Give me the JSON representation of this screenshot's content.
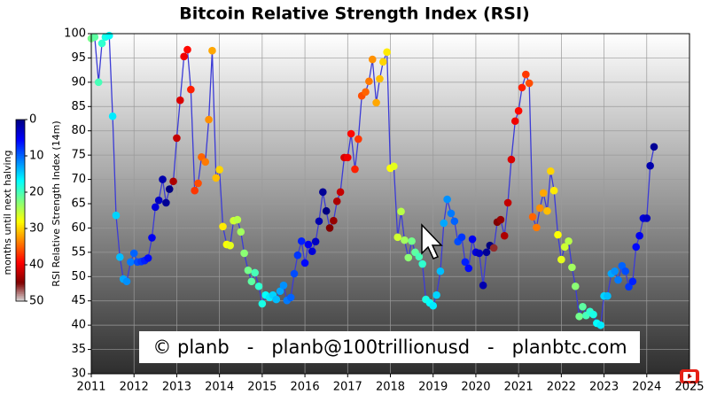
{
  "chart_data": {
    "type": "scatter",
    "title": "Bitcoin Relative Strength Index (RSI)",
    "ylabel": "RSI Relative Strength Index (14m)",
    "annotation": "© planb   -   planb@100trillionusd   -   planbtc.com",
    "xlim": [
      2011,
      2025
    ],
    "ylim": [
      30,
      100
    ],
    "xticks": [
      2011,
      2012,
      2013,
      2014,
      2015,
      2016,
      2017,
      2018,
      2019,
      2020,
      2021,
      2022,
      2023,
      2024,
      2025
    ],
    "yticks": [
      30,
      35,
      40,
      45,
      50,
      55,
      60,
      65,
      70,
      75,
      80,
      85,
      90,
      95,
      100
    ],
    "grid": true,
    "line_color": "#3b3bd6",
    "colorbar": {
      "label": "months until next halving",
      "lim": [
        0,
        50
      ],
      "ticks": [
        0,
        10,
        20,
        30,
        40,
        50
      ],
      "colormap": "jet"
    },
    "x": [
      2011.0,
      2011.08,
      2011.17,
      2011.25,
      2011.33,
      2011.42,
      2011.5,
      2011.58,
      2011.67,
      2011.75,
      2011.83,
      2011.92,
      2012.0,
      2012.08,
      2012.17,
      2012.25,
      2012.33,
      2012.42,
      2012.5,
      2012.58,
      2012.67,
      2012.75,
      2012.83,
      2012.92,
      2013.0,
      2013.08,
      2013.17,
      2013.25,
      2013.33,
      2013.42,
      2013.5,
      2013.58,
      2013.67,
      2013.75,
      2013.83,
      2013.92,
      2014.0,
      2014.08,
      2014.17,
      2014.25,
      2014.33,
      2014.42,
      2014.5,
      2014.58,
      2014.67,
      2014.75,
      2014.83,
      2014.92,
      2015.0,
      2015.08,
      2015.17,
      2015.25,
      2015.33,
      2015.42,
      2015.5,
      2015.58,
      2015.67,
      2015.75,
      2015.83,
      2015.92,
      2016.0,
      2016.08,
      2016.17,
      2016.25,
      2016.33,
      2016.42,
      2016.5,
      2016.58,
      2016.67,
      2016.75,
      2016.83,
      2016.92,
      2017.0,
      2017.08,
      2017.17,
      2017.25,
      2017.33,
      2017.42,
      2017.5,
      2017.58,
      2017.67,
      2017.75,
      2017.83,
      2017.92,
      2018.0,
      2018.08,
      2018.17,
      2018.25,
      2018.33,
      2018.42,
      2018.5,
      2018.58,
      2018.67,
      2018.75,
      2018.83,
      2018.92,
      2019.0,
      2019.08,
      2019.17,
      2019.25,
      2019.33,
      2019.42,
      2019.5,
      2019.58,
      2019.67,
      2019.75,
      2019.83,
      2019.92,
      2020.0,
      2020.08,
      2020.17,
      2020.25,
      2020.33,
      2020.42,
      2020.5,
      2020.58,
      2020.67,
      2020.75,
      2020.83,
      2020.92,
      2021.0,
      2021.08,
      2021.17,
      2021.25,
      2021.33,
      2021.42,
      2021.5,
      2021.58,
      2021.67,
      2021.75,
      2021.83,
      2021.92,
      2022.0,
      2022.08,
      2022.17,
      2022.25,
      2022.33,
      2022.42,
      2022.5,
      2022.58,
      2022.67,
      2022.75,
      2022.83,
      2022.92,
      2023.0,
      2023.08,
      2023.17,
      2023.25,
      2023.33,
      2023.42,
      2023.5,
      2023.58,
      2023.67,
      2023.75,
      2023.83,
      2023.92,
      2024.0,
      2024.08,
      2024.17
    ],
    "series": [
      {
        "values": [
          99,
          99.3,
          90,
          98,
          99.3,
          99.6,
          83,
          62.6,
          54,
          49.5,
          49,
          53,
          54.8,
          53,
          53.1,
          53.3,
          53.8,
          58,
          64.3,
          65.7,
          70,
          65.2,
          68,
          69.6,
          78.5,
          86.3,
          95.3,
          96.7,
          88.5,
          67.7,
          69.2,
          74.6,
          73.6,
          82.3,
          96.5,
          70.3,
          72,
          60.3,
          56.6,
          56.4,
          61.5,
          61.7,
          59.2,
          54.8,
          51.3,
          49,
          50.8,
          48,
          44.4,
          46.2,
          45.7,
          46.2,
          45.3,
          47,
          48.2,
          45.1,
          45.7,
          50.6,
          54.4,
          57.3,
          52.8,
          56.6,
          55.2,
          57.2,
          61.4,
          67.4,
          63.5,
          60,
          61.5,
          65.5,
          67.4,
          74.5,
          74.5,
          79.4,
          72.1,
          78.3,
          87.2,
          88,
          90.2,
          94.7,
          85.8,
          90.7,
          94.2,
          96.2,
          72.3,
          72.7,
          58.1,
          63.4,
          57.5,
          53.9,
          57.3,
          55,
          54.1,
          52.6,
          45.3,
          44.6,
          44,
          46.2,
          51.1,
          61,
          65.9,
          63,
          61.4,
          57.2,
          58.1,
          53,
          51.7,
          57.7,
          55,
          54.8,
          48.2,
          55,
          56.4,
          55.9,
          61.2,
          61.7,
          58.4,
          65.2,
          74.1,
          82,
          84.1,
          88.9,
          91.6,
          89.8,
          62.3,
          60.1,
          64.1,
          67.2,
          63.5,
          71.7,
          67.7,
          58.6,
          53.5,
          56.1,
          57.3,
          51.9,
          48,
          41.8,
          43.8,
          42,
          42.8,
          42.2,
          40.4,
          40,
          46,
          46,
          50.6,
          51.1,
          49.3,
          52.2,
          51.1,
          47.9,
          49,
          56.1,
          58.4,
          62,
          62,
          72.8,
          76.7
        ],
        "z": [
          22,
          21,
          20,
          19,
          18,
          17,
          16,
          15,
          14,
          13,
          12,
          11,
          10,
          9,
          8,
          7,
          6,
          5,
          4,
          3,
          2,
          1,
          0,
          43,
          42,
          41,
          40,
          39,
          38,
          37,
          36,
          35,
          34,
          33,
          32,
          31,
          30,
          29,
          28,
          27,
          26,
          25,
          24,
          23,
          22,
          21,
          20,
          19,
          18,
          17,
          16,
          15,
          14,
          13,
          12,
          11,
          10,
          9,
          8,
          7,
          6,
          5,
          4,
          3,
          2,
          1,
          0,
          45,
          44,
          43,
          42,
          41,
          40,
          39,
          38,
          37,
          36,
          35,
          34,
          33,
          32,
          31,
          30,
          29,
          28,
          27,
          26,
          25,
          24,
          23,
          22,
          21,
          20,
          19,
          18,
          17,
          16,
          15,
          14,
          13,
          12,
          11,
          10,
          9,
          8,
          7,
          6,
          5,
          4,
          3,
          2,
          1,
          0,
          46,
          45,
          44,
          43,
          42,
          41,
          40,
          39,
          38,
          37,
          36,
          35,
          34,
          33,
          32,
          31,
          30,
          29,
          28,
          27,
          26,
          25,
          24,
          23,
          22,
          21,
          20,
          19,
          18,
          17,
          16,
          15,
          14,
          13,
          12,
          11,
          10,
          9,
          8,
          7,
          6,
          5,
          4,
          3,
          2,
          1
        ]
      }
    ]
  }
}
